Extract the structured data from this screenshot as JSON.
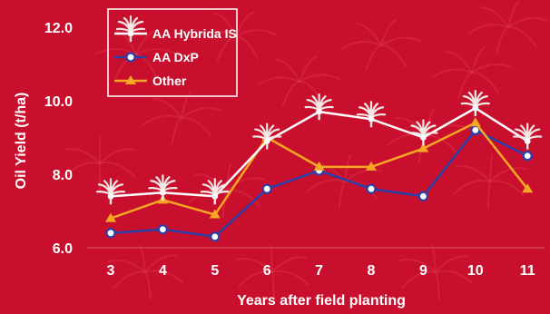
{
  "chart_data": {
    "type": "line",
    "x": [
      3,
      4,
      5,
      6,
      7,
      8,
      9,
      10,
      11
    ],
    "series": [
      {
        "name": "AA Hybrida IS",
        "color": "#ffffff",
        "marker": "palm-tree-icon",
        "values": [
          7.4,
          7.5,
          7.4,
          8.9,
          9.7,
          9.5,
          9.0,
          9.8,
          8.9
        ]
      },
      {
        "name": "AA DxP",
        "color": "#2b3fa8",
        "marker": "circle",
        "values": [
          6.4,
          6.5,
          6.3,
          7.6,
          8.1,
          7.6,
          7.4,
          9.2,
          8.5
        ]
      },
      {
        "name": "Other",
        "color": "#f5a623",
        "marker": "triangle",
        "values": [
          6.8,
          7.3,
          6.9,
          9.0,
          8.2,
          8.2,
          8.7,
          9.4,
          7.6
        ]
      }
    ],
    "xlabel": "Years after field planting",
    "ylabel": "Oil Yield (t/ha)",
    "yticks": [
      "6.0",
      "8.0",
      "10.0",
      "12.0"
    ],
    "xticks": [
      "3",
      "4",
      "5",
      "6",
      "7",
      "8",
      "9",
      "10",
      "11"
    ],
    "ylim": [
      6.0,
      12.0
    ],
    "grid": false,
    "legend_position": "top-left"
  }
}
